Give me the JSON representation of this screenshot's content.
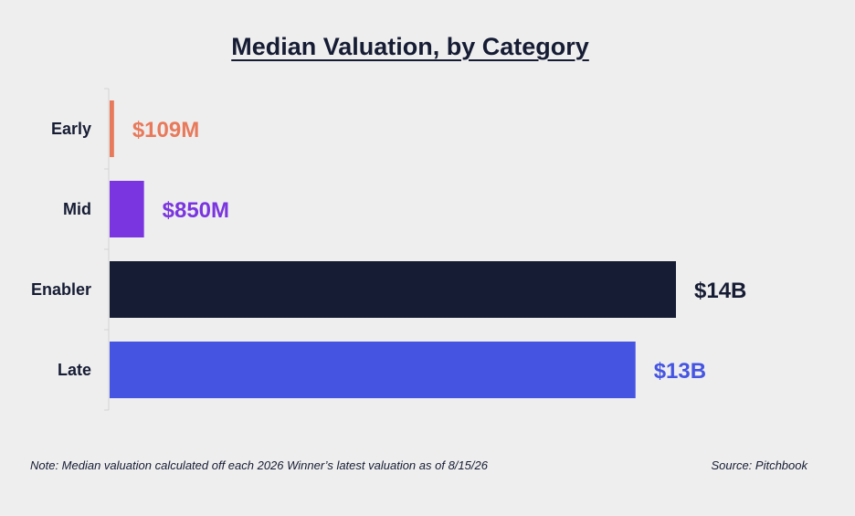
{
  "chart_data": {
    "type": "bar",
    "orientation": "horizontal",
    "title": "Median Valuation, by Category",
    "xlabel": "",
    "ylabel": "",
    "categories": [
      "Early",
      "Mid",
      "Enabler",
      "Late"
    ],
    "values": [
      0.109,
      0.85,
      14,
      13
    ],
    "value_unit": "$B",
    "value_labels": [
      "$109M",
      "$850M",
      "$14B",
      "$13B"
    ],
    "colors": [
      "#e8795b",
      "#7a35e0",
      "#161c34",
      "#4555e2"
    ],
    "axis_color": "#d4d4d4",
    "xlim": [
      0,
      14
    ],
    "grid": false,
    "legend": "none"
  },
  "footer": {
    "note": "Note: Median valuation calculated off each 2026 Winner’s latest valuation as of 8/15/26",
    "source": "Source: Pitchbook"
  }
}
